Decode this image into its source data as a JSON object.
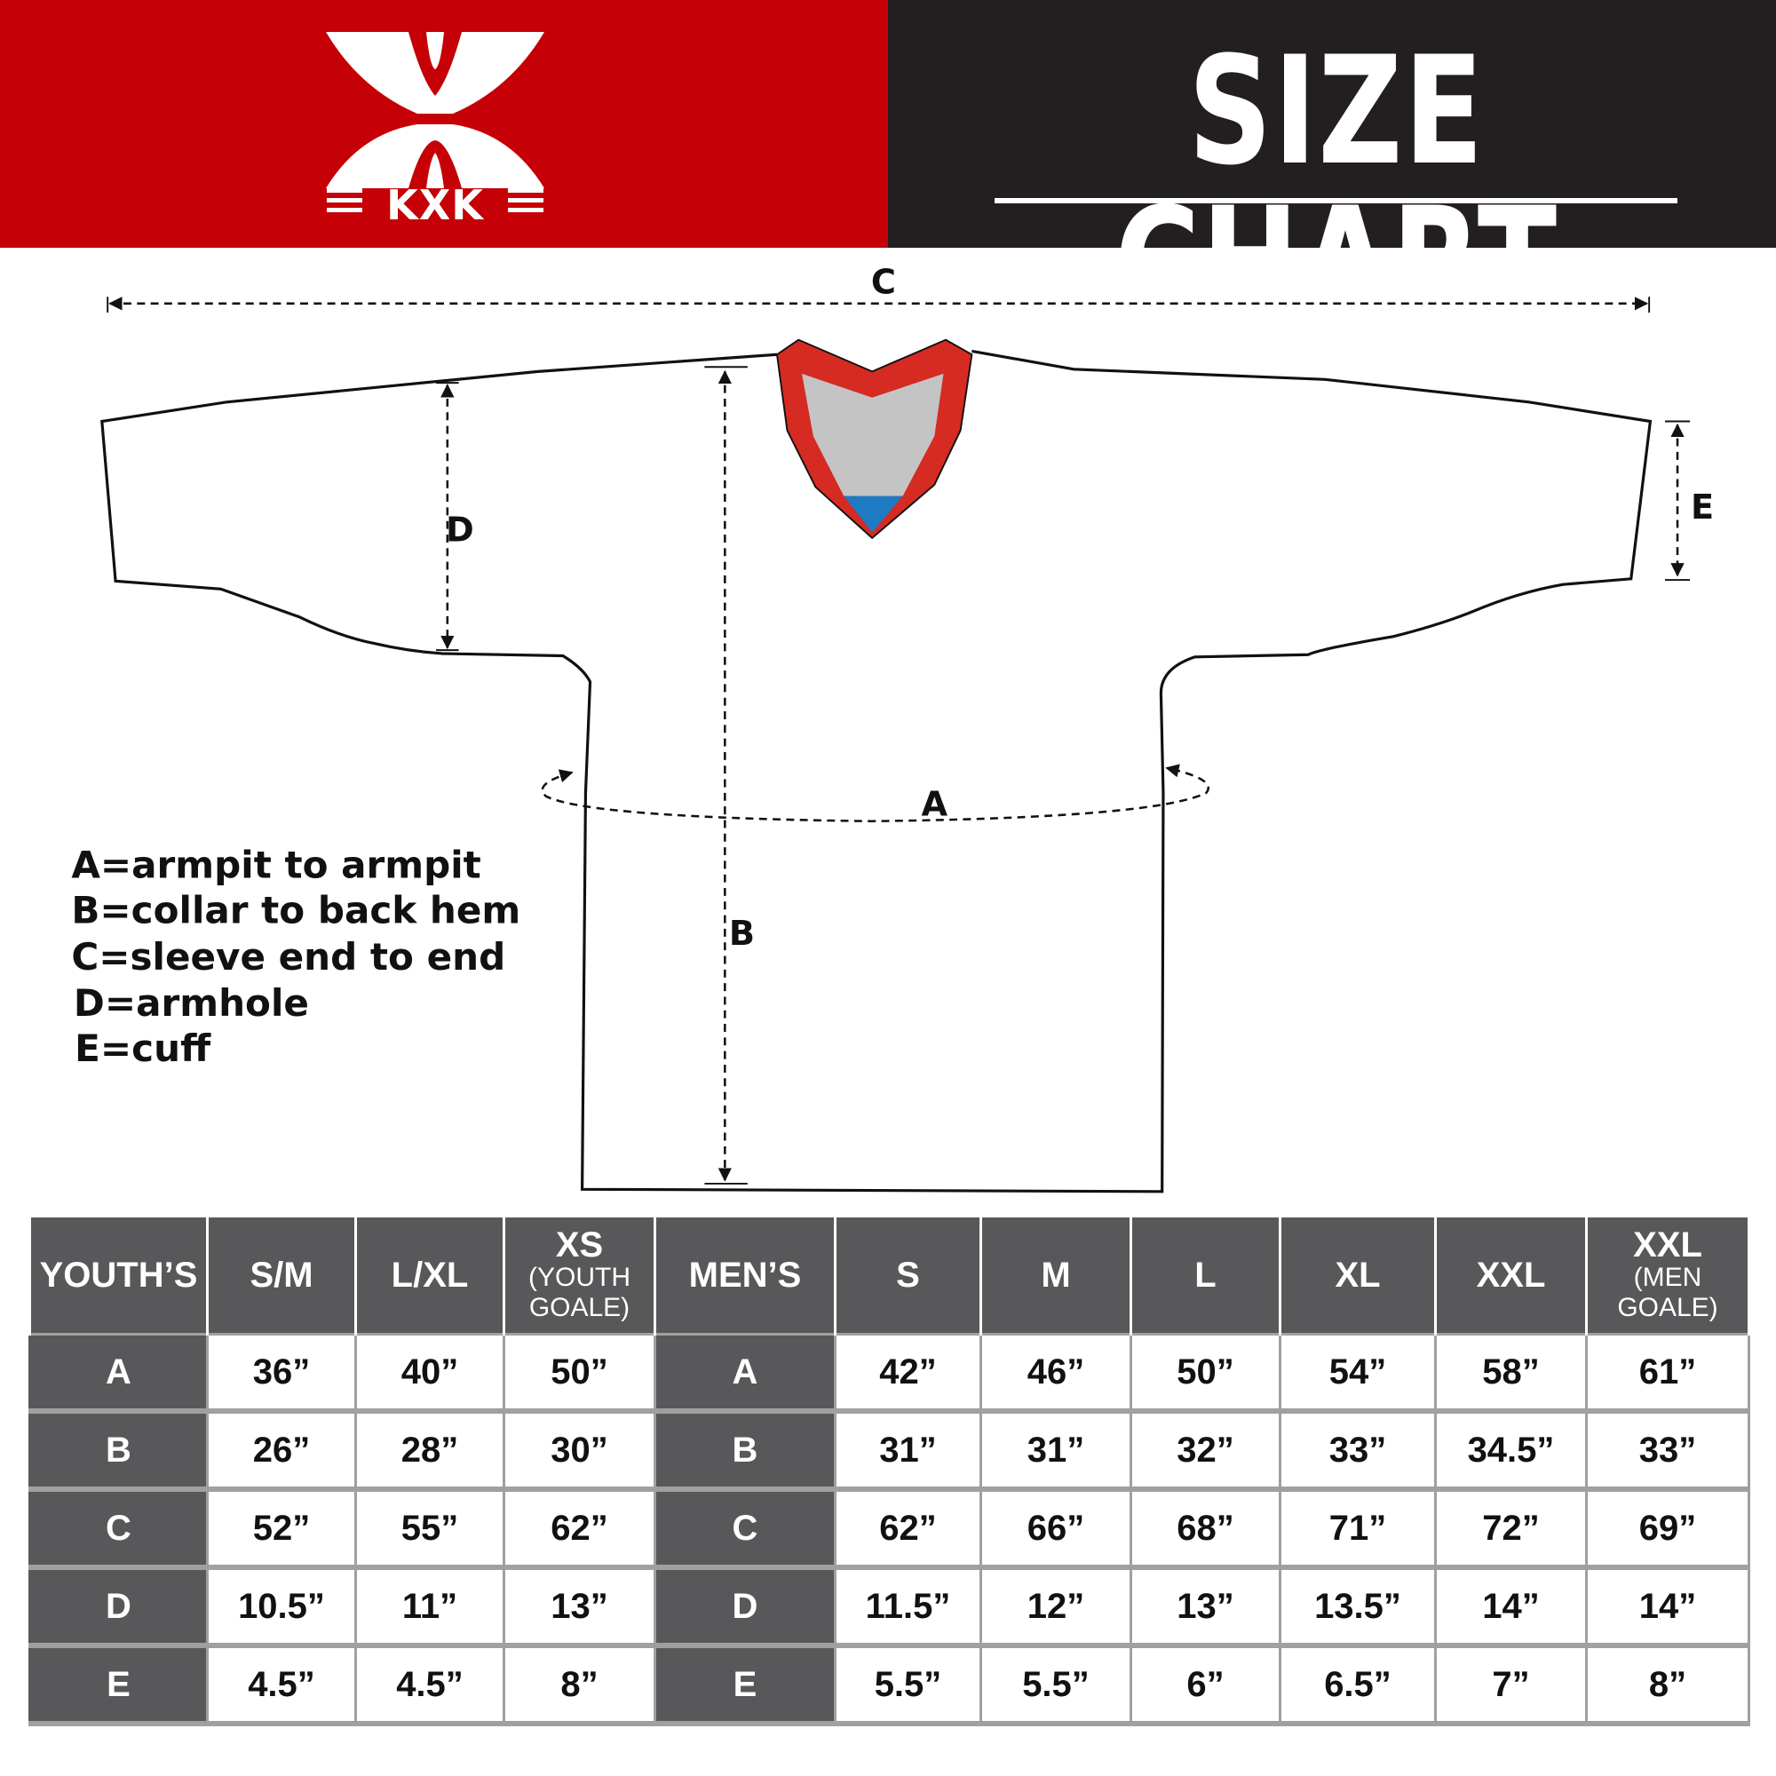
{
  "header": {
    "logo_text": "KXK",
    "title": "SIZE CHART",
    "colors": {
      "brand_red": "#c50006",
      "dark": "#231f20",
      "table_header": "#58585a",
      "collar_gray": "#c4c4c4",
      "collar_blue": "#1f7ac4"
    }
  },
  "diagram": {
    "labels": {
      "a": "A",
      "b": "B",
      "c": "C",
      "d": "D",
      "e": "E"
    },
    "legend": [
      "A=armpit to armpit",
      "B=collar to back hem",
      "C=sleeve end to end",
      "D=armhole",
      "E=cuff"
    ]
  },
  "table": {
    "youth": {
      "header": "YOUTH’S",
      "sizes": [
        {
          "label": "S/M",
          "sub": ""
        },
        {
          "label": "L/XL",
          "sub": ""
        },
        {
          "label": "XS",
          "sub": "(YOUTH GOALE)"
        }
      ],
      "rows": [
        {
          "m": "A",
          "values": [
            "36”",
            "40”",
            "50”"
          ]
        },
        {
          "m": "B",
          "values": [
            "26”",
            "28”",
            "30”"
          ]
        },
        {
          "m": "C",
          "values": [
            "52”",
            "55”",
            "62”"
          ]
        },
        {
          "m": "D",
          "values": [
            "10.5”",
            "11”",
            "13”"
          ]
        },
        {
          "m": "E",
          "values": [
            "4.5”",
            "4.5”",
            "8”"
          ]
        }
      ]
    },
    "men": {
      "header": "MEN’S",
      "sizes": [
        {
          "label": "S",
          "sub": ""
        },
        {
          "label": "M",
          "sub": ""
        },
        {
          "label": "L",
          "sub": ""
        },
        {
          "label": "XL",
          "sub": ""
        },
        {
          "label": "XXL",
          "sub": ""
        },
        {
          "label": "XXL",
          "sub": "(MEN GOALE)"
        }
      ],
      "rows": [
        {
          "m": "A",
          "values": [
            "42”",
            "46”",
            "50”",
            "54”",
            "58”",
            "61”"
          ]
        },
        {
          "m": "B",
          "values": [
            "31”",
            "31”",
            "32”",
            "33”",
            "34.5”",
            "33”"
          ]
        },
        {
          "m": "C",
          "values": [
            "62”",
            "66”",
            "68”",
            "71”",
            "72”",
            "69”"
          ]
        },
        {
          "m": "D",
          "values": [
            "11.5”",
            "12”",
            "13”",
            "13.5”",
            "14”",
            "14”"
          ]
        },
        {
          "m": "E",
          "values": [
            "5.5”",
            "5.5”",
            "6”",
            "6.5”",
            "7”",
            "8”"
          ]
        }
      ]
    }
  }
}
